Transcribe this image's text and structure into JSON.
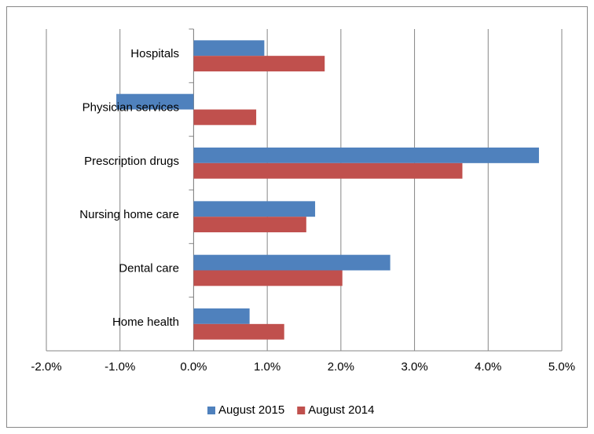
{
  "chart_data": {
    "type": "bar",
    "orientation": "horizontal",
    "categories": [
      "Hospitals",
      "Physician services",
      "Prescription drugs",
      "Nursing home care",
      "Dental care",
      "Home health"
    ],
    "series": [
      {
        "name": "August 2015",
        "color": "#4f81bd",
        "values": [
          0.96,
          -1.05,
          4.69,
          1.65,
          2.67,
          0.76
        ]
      },
      {
        "name": "August 2014",
        "color": "#c0504d",
        "values": [
          1.78,
          0.85,
          3.65,
          1.53,
          2.02,
          1.23
        ]
      }
    ],
    "xlim": [
      -2,
      5
    ],
    "xticks": [
      {
        "value": -2,
        "label": "-2.0%"
      },
      {
        "value": -1,
        "label": "-1.0%"
      },
      {
        "value": 0,
        "label": "0.0%"
      },
      {
        "value": 1,
        "label": "1.0%"
      },
      {
        "value": 2,
        "label": "2.0%"
      },
      {
        "value": 3,
        "label": "3.0%"
      },
      {
        "value": 4,
        "label": "4.0%"
      },
      {
        "value": 5,
        "label": "5.0%"
      }
    ],
    "grid": true,
    "legend": "bottom"
  }
}
